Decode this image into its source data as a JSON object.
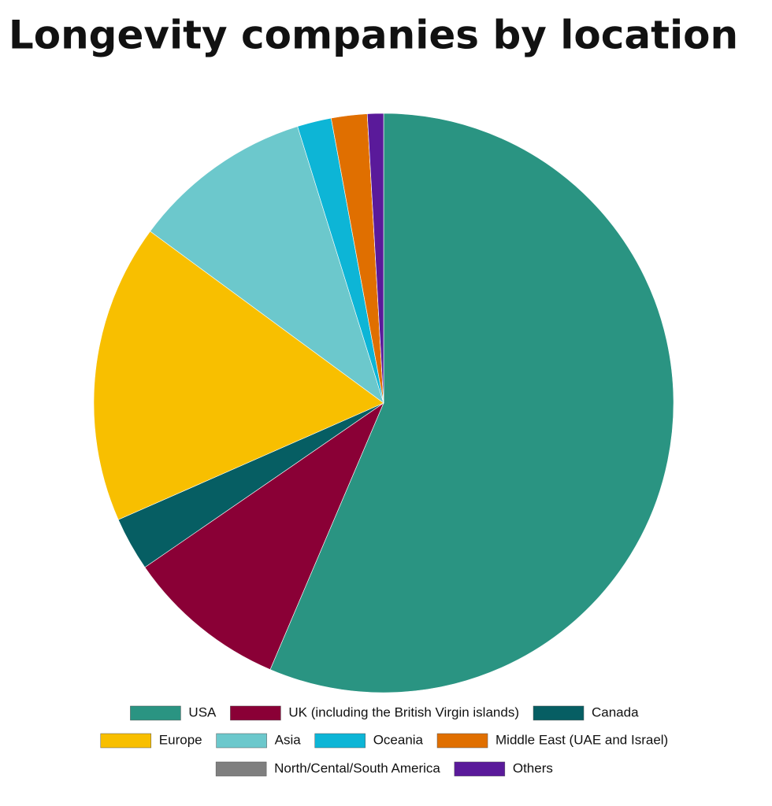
{
  "chart_data": {
    "type": "pie",
    "title": "Longevity companies by location",
    "categories": [
      "USA",
      "UK (including the British Virgin islands)",
      "Canada",
      "Europe",
      "Asia",
      "Oceania",
      "Middle East (UAE and Israel)",
      "North/Cental/South America",
      "Others"
    ],
    "values": [
      56.4,
      9.0,
      3.0,
      16.7,
      10.1,
      1.9,
      2.0,
      0.0,
      0.9
    ],
    "colors": [
      "#2a9482",
      "#8a0036",
      "#065e63",
      "#f8bf00",
      "#6cc8cc",
      "#0db5d6",
      "#e06f00",
      "#7f7f7f",
      "#5a1a9a"
    ],
    "legend": "bottom"
  }
}
